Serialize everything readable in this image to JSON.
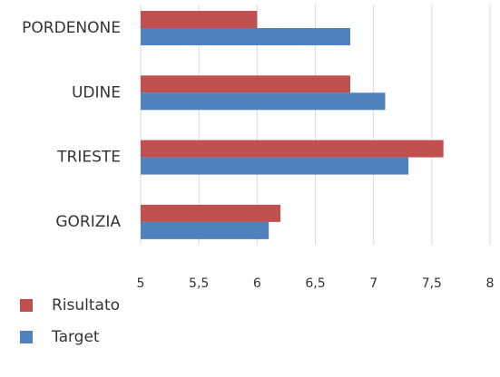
{
  "chart_data": {
    "type": "hbar",
    "categories": [
      "PORDENONE",
      "UDINE",
      "TRIESTE",
      "GORIZIA"
    ],
    "series": [
      {
        "name": "Risultato",
        "color": "#c0504d",
        "values": [
          6.0,
          6.8,
          7.6,
          6.2
        ]
      },
      {
        "name": "Target",
        "color": "#4f81bd",
        "values": [
          6.8,
          7.1,
          7.3,
          6.1
        ]
      }
    ],
    "xlim": [
      5,
      8
    ],
    "xticks": [
      5,
      {
        "value": 5.5,
        "label": "5,5"
      },
      6,
      {
        "value": 6.5,
        "label": "6,5"
      },
      7,
      {
        "value": 7.5,
        "label": "7,5"
      },
      8
    ],
    "grid": true,
    "legend": "bottom-left"
  }
}
